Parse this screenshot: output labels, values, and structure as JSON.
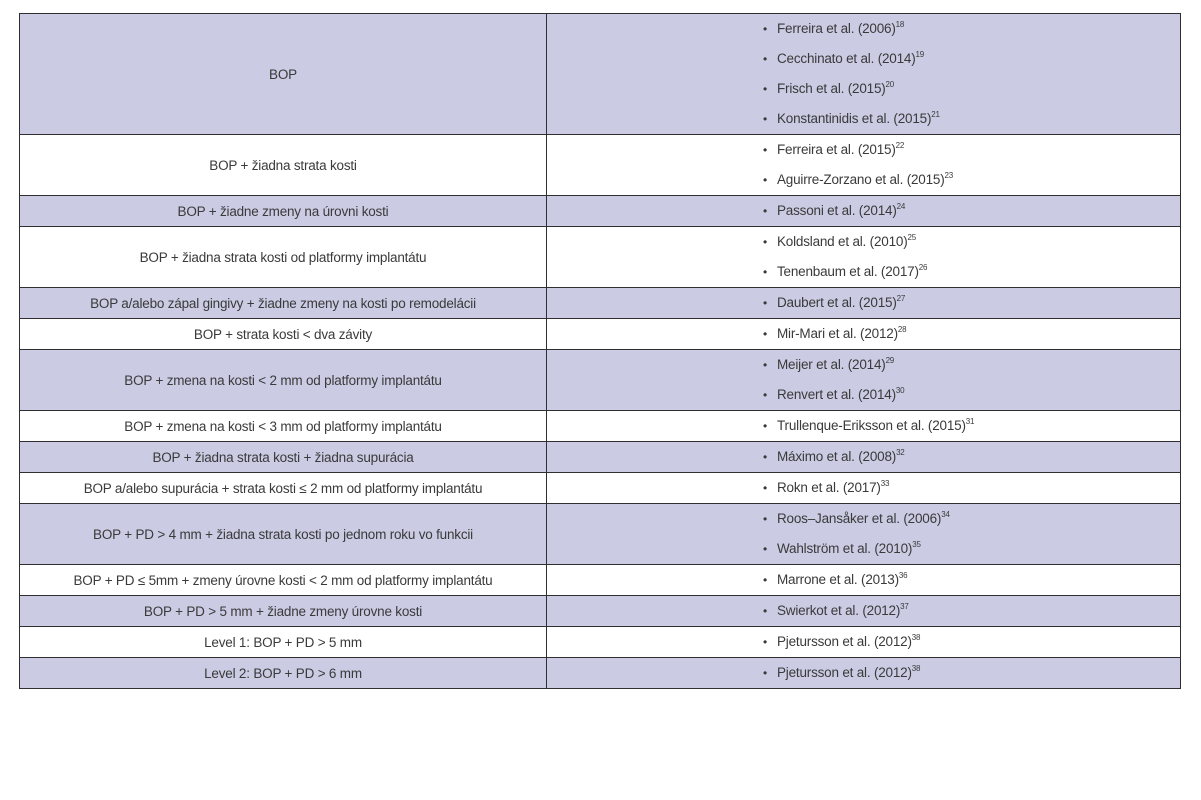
{
  "table": {
    "rows": [
      {
        "criteria": "BOP",
        "shaded": true,
        "refs": [
          {
            "text": "Ferreira et al. (2006)",
            "sup": "18"
          },
          {
            "text": "Cecchinato et al. (2014)",
            "sup": "19"
          },
          {
            "text": "Frisch et al. (2015)",
            "sup": "20"
          },
          {
            "text": "Konstantinidis et al. (2015)",
            "sup": "21"
          }
        ]
      },
      {
        "criteria": "BOP + žiadna strata kosti",
        "shaded": false,
        "refs": [
          {
            "text": "Ferreira et al. (2015)",
            "sup": "22"
          },
          {
            "text": "Aguirre-Zorzano et al. (2015)",
            "sup": "23"
          }
        ]
      },
      {
        "criteria": "BOP + žiadne zmeny na úrovni kosti",
        "shaded": true,
        "refs": [
          {
            "text": "Passoni et al. (2014)",
            "sup": "24"
          }
        ]
      },
      {
        "criteria": "BOP + žiadna strata kosti od platformy implantátu",
        "shaded": false,
        "refs": [
          {
            "text": "Koldsland et al. (2010)",
            "sup": "25"
          },
          {
            "text": "Tenenbaum et al. (2017)",
            "sup": "26"
          }
        ]
      },
      {
        "criteria": "BOP a/alebo zápal gingivy + žiadne zmeny na kosti po remodelácii",
        "shaded": true,
        "refs": [
          {
            "text": "Daubert et al. (2015)",
            "sup": "27"
          }
        ]
      },
      {
        "criteria": "BOP + strata kosti < dva závity",
        "shaded": false,
        "refs": [
          {
            "text": "Mir-Mari et al. (2012)",
            "sup": "28"
          }
        ]
      },
      {
        "criteria": "BOP + zmena na kosti < 2 mm od platformy implantátu",
        "shaded": true,
        "refs": [
          {
            "text": "Meijer et al. (2014)",
            "sup": "29"
          },
          {
            "text": "Renvert et al. (2014)",
            "sup": "30"
          }
        ]
      },
      {
        "criteria": "BOP + zmena na kosti < 3 mm od platformy implantátu",
        "shaded": false,
        "refs": [
          {
            "text": "Trullenque-Eriksson et al. (2015)",
            "sup": "31"
          }
        ]
      },
      {
        "criteria": "BOP + žiadna strata kosti + žiadna supurácia",
        "shaded": true,
        "refs": [
          {
            "text": "Máximo et al. (2008)",
            "sup": "32"
          }
        ]
      },
      {
        "criteria": "BOP a/alebo supurácia + strata kosti ≤ 2 mm od platformy implantátu",
        "shaded": false,
        "refs": [
          {
            "text": "Rokn et al. (2017)",
            "sup": "33"
          }
        ]
      },
      {
        "criteria": "BOP + PD > 4 mm + žiadna strata kosti po jednom roku vo funkcii",
        "shaded": true,
        "refs": [
          {
            "text": "Roos–Jansåker et al. (2006)",
            "sup": "34"
          },
          {
            "text": "Wahlström et al. (2010)",
            "sup": "35"
          }
        ]
      },
      {
        "criteria": "BOP + PD ≤ 5mm + zmeny úrovne kosti < 2 mm od platformy implantátu",
        "shaded": false,
        "refs": [
          {
            "text": "Marrone et al. (2013)",
            "sup": "36"
          }
        ]
      },
      {
        "criteria": "BOP + PD > 5 mm + žiadne zmeny úrovne kosti",
        "shaded": true,
        "refs": [
          {
            "text": "Swierkot et al. (2012)",
            "sup": "37"
          }
        ]
      },
      {
        "criteria": "Level 1: BOP + PD > 5 mm",
        "shaded": false,
        "refs": [
          {
            "text": "Pjetursson et al. (2012)",
            "sup": "38"
          }
        ]
      },
      {
        "criteria": "Level 2: BOP + PD > 6 mm",
        "shaded": true,
        "refs": [
          {
            "text": "Pjetursson et al. (2012)",
            "sup": "38"
          }
        ]
      }
    ]
  },
  "colors": {
    "shaded_row": "#cbcbe4",
    "plain_row": "#ffffff",
    "border": "#2f2f2f",
    "text": "#3a3a3a"
  }
}
